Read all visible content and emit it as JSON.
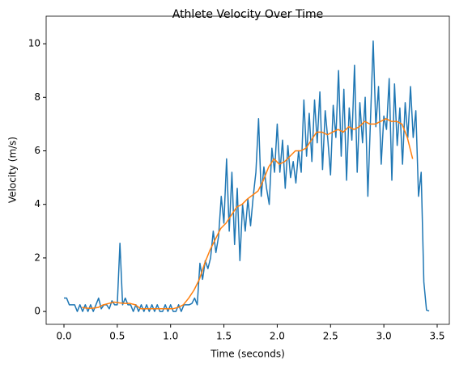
{
  "chart_data": {
    "type": "line",
    "title": "Athlete Velocity Over Time",
    "xlabel": "Time (seconds)",
    "ylabel": "Velocity (m/s)",
    "xlim": [
      -0.167,
      3.614
    ],
    "ylim": [
      -0.48,
      11.03
    ],
    "xticks": [
      {
        "value": 0,
        "label": "0.0"
      },
      0.5,
      {
        "value": 1,
        "label": "1.0"
      },
      1.5,
      {
        "value": 2,
        "label": "2.0"
      },
      2.5,
      {
        "value": 3,
        "label": "3.0"
      },
      3.5
    ],
    "yticks": [
      0,
      2,
      4,
      6,
      8,
      10
    ],
    "grid": false,
    "series": [
      {
        "color": "#1f77b4",
        "x": [
          0,
          0.025,
          0.05,
          0.075,
          0.1,
          0.125,
          0.15,
          0.175,
          0.2,
          0.225,
          0.25,
          0.275,
          0.3,
          0.325,
          0.35,
          0.375,
          0.4,
          0.425,
          0.45,
          0.475,
          0.5,
          0.525,
          0.55,
          0.575,
          0.6,
          0.625,
          0.65,
          0.675,
          0.7,
          0.725,
          0.75,
          0.775,
          0.8,
          0.825,
          0.85,
          0.875,
          0.9,
          0.925,
          0.95,
          0.975,
          1,
          1.025,
          1.05,
          1.075,
          1.1,
          1.125,
          1.15,
          1.175,
          1.2,
          1.225,
          1.25,
          1.275,
          1.3,
          1.325,
          1.35,
          1.375,
          1.4,
          1.425,
          1.45,
          1.475,
          1.5,
          1.525,
          1.55,
          1.575,
          1.6,
          1.625,
          1.65,
          1.675,
          1.7,
          1.725,
          1.75,
          1.775,
          1.8,
          1.825,
          1.85,
          1.875,
          1.9,
          1.925,
          1.95,
          1.975,
          2,
          2.025,
          2.05,
          2.075,
          2.1,
          2.125,
          2.15,
          2.175,
          2.2,
          2.225,
          2.25,
          2.275,
          2.3,
          2.325,
          2.35,
          2.375,
          2.4,
          2.425,
          2.45,
          2.475,
          2.5,
          2.525,
          2.55,
          2.575,
          2.6,
          2.625,
          2.65,
          2.675,
          2.7,
          2.725,
          2.75,
          2.775,
          2.8,
          2.825,
          2.85,
          2.875,
          2.9,
          2.925,
          2.95,
          2.975,
          3,
          3.025,
          3.05,
          3.075,
          3.1,
          3.125,
          3.15,
          3.175,
          3.2,
          3.225,
          3.25,
          3.275,
          3.3,
          3.325,
          3.35,
          3.375,
          3.4,
          3.425
        ],
        "values": [
          0.5,
          0.5,
          0.25,
          0.25,
          0.25,
          0,
          0.25,
          0,
          0.25,
          0,
          0.25,
          0,
          0.25,
          0.5,
          0.1,
          0.25,
          0.25,
          0.1,
          0.4,
          0.25,
          0.25,
          2.55,
          0.25,
          0.5,
          0.25,
          0.25,
          0,
          0.25,
          0,
          0.25,
          0,
          0.25,
          0,
          0.25,
          0,
          0.25,
          0,
          0,
          0.25,
          0,
          0.25,
          0,
          0,
          0.25,
          0,
          0.25,
          0.25,
          0.25,
          0.3,
          0.5,
          0.25,
          1.8,
          1.2,
          1.9,
          1.6,
          2.0,
          3.0,
          2.2,
          2.8,
          4.3,
          3.3,
          5.7,
          3.0,
          5.2,
          2.5,
          4.6,
          1.9,
          4.0,
          3.0,
          4.2,
          3.2,
          4.3,
          5.2,
          7.2,
          4.3,
          5.4,
          4.6,
          4.0,
          6.1,
          5.2,
          7.0,
          5.2,
          6.4,
          4.6,
          6.2,
          5.0,
          5.6,
          4.8,
          6.0,
          5.2,
          7.9,
          5.8,
          7.4,
          5.6,
          7.9,
          6.3,
          8.2,
          5.3,
          7.5,
          6.4,
          5.1,
          7.7,
          6.5,
          9.0,
          5.8,
          8.3,
          4.9,
          7.6,
          6.4,
          9.2,
          5.2,
          7.8,
          6.3,
          8.0,
          4.3,
          7.2,
          10.1,
          6.9,
          8.4,
          5.5,
          7.3,
          6.8,
          8.7,
          4.9,
          8.5,
          6.2,
          7.6,
          5.5,
          7.8,
          6.5,
          8.4,
          6.5,
          7.5,
          4.3,
          5.2,
          1.1,
          0.05,
          0.02
        ]
      },
      {
        "color": "#ff7f0e",
        "x": [
          0.17,
          0.22,
          0.27,
          0.32,
          0.37,
          0.42,
          0.47,
          0.52,
          0.57,
          0.62,
          0.67,
          0.72,
          0.77,
          0.82,
          0.87,
          0.92,
          0.97,
          1.02,
          1.07,
          1.12,
          1.17,
          1.22,
          1.27,
          1.32,
          1.37,
          1.42,
          1.47,
          1.52,
          1.57,
          1.62,
          1.67,
          1.72,
          1.77,
          1.82,
          1.87,
          1.92,
          1.97,
          2.02,
          2.07,
          2.12,
          2.17,
          2.22,
          2.27,
          2.32,
          2.37,
          2.42,
          2.47,
          2.52,
          2.57,
          2.62,
          2.67,
          2.72,
          2.77,
          2.82,
          2.87,
          2.92,
          2.97,
          3.02,
          3.07,
          3.12,
          3.17,
          3.22,
          3.27
        ],
        "values": [
          0.15,
          0.12,
          0.12,
          0.15,
          0.25,
          0.3,
          0.35,
          0.32,
          0.3,
          0.3,
          0.25,
          0.1,
          0.1,
          0.1,
          0.1,
          0.1,
          0.1,
          0.1,
          0.15,
          0.25,
          0.5,
          0.8,
          1.2,
          1.8,
          2.3,
          2.7,
          3.1,
          3.3,
          3.6,
          3.9,
          4.0,
          4.2,
          4.35,
          4.5,
          4.9,
          5.4,
          5.7,
          5.5,
          5.6,
          5.8,
          6.0,
          6.0,
          6.1,
          6.4,
          6.7,
          6.7,
          6.6,
          6.7,
          6.8,
          6.7,
          6.9,
          6.8,
          6.9,
          7.1,
          7.0,
          7.0,
          7.1,
          7.2,
          7.1,
          7.1,
          7.0,
          6.5,
          5.7
        ]
      }
    ]
  }
}
